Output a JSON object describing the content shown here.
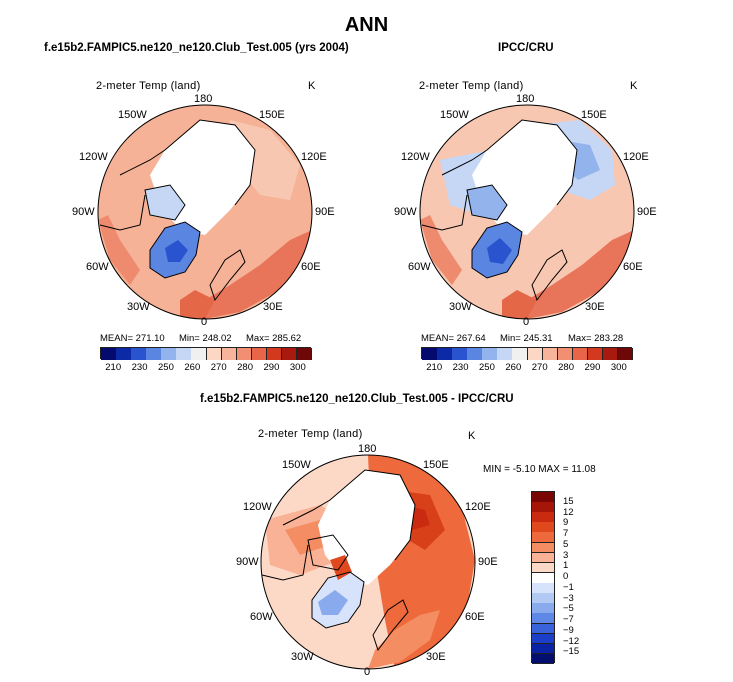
{
  "figure": {
    "title": "ANN",
    "variable": "2-meter Temp (land)",
    "units": "K"
  },
  "panels": [
    {
      "id": "model",
      "title": "f.e15b2.FAMPIC5.ne120_ne120.Club_Test.005 (yrs 2004)",
      "stats": {
        "mean": "271.10",
        "min": "248.02",
        "max": "285.62"
      },
      "stats_text": {
        "mean": "MEAN= 271.10",
        "min": "Min= 248.02",
        "max": "Max= 285.62"
      }
    },
    {
      "id": "obs",
      "title": "IPCC/CRU",
      "stats": {
        "mean": "267.64",
        "min": "245.31",
        "max": "283.28"
      },
      "stats_text": {
        "mean": "MEAN= 267.64",
        "min": "Min= 245.31",
        "max": "Max= 283.28"
      }
    },
    {
      "id": "diff",
      "title": "f.e15b2.FAMPIC5.ne120_ne120.Club_Test.005 - IPCC/CRU",
      "stats_text": {
        "line": "MIN =   -5.10 MAX =   11.08"
      }
    }
  ],
  "longitude_labels": {
    "top": "180",
    "tl": "150W",
    "tr": "150E",
    "ul": "120W",
    "ur": "120E",
    "l": "90W",
    "r": "90E",
    "ll": "60W",
    "lr": "60E",
    "bl": "30W",
    "br": "30E",
    "bottom": "0"
  },
  "colorbars": {
    "absolute": {
      "labels": [
        "210",
        "230",
        "250",
        "260",
        "270",
        "280",
        "290",
        "300"
      ],
      "colors": [
        "#050a6e",
        "#0d2aa6",
        "#2a54cf",
        "#5a85e0",
        "#93b3ec",
        "#c5d7f4",
        "#f0f0f0",
        "#fbd7c4",
        "#f8b49a",
        "#f28f72",
        "#e8654a",
        "#d2391e",
        "#a81a0e",
        "#6e0707"
      ]
    },
    "difference": {
      "labels": [
        "15",
        "12",
        "9",
        "7",
        "5",
        "3",
        "1",
        "0",
        "−1",
        "−3",
        "−5",
        "−7",
        "−9",
        "−12",
        "−15"
      ],
      "colors": [
        "#7a0505",
        "#a51508",
        "#c92a10",
        "#e0481e",
        "#ee6a3c",
        "#f58d62",
        "#f9b295",
        "#fcd8c7",
        "#ffffff",
        "#d6e3fa",
        "#b2c9f4",
        "#8aaaee",
        "#5f87e6",
        "#3a62da",
        "#1b3fc8",
        "#0a22a4",
        "#030e6e"
      ]
    }
  },
  "chart_data": [
    {
      "type": "heatmap",
      "projection": "north polar stereographic",
      "title": "f.e15b2.FAMPIC5.ne120_ne120.Club_Test.005 (yrs 2004)",
      "variable": "2-meter Temp (land)",
      "units": "K",
      "mean": 271.1,
      "min": 248.02,
      "max": 285.62,
      "levels": [
        210,
        230,
        250,
        260,
        270,
        280,
        290,
        300
      ]
    },
    {
      "type": "heatmap",
      "projection": "north polar stereographic",
      "title": "IPCC/CRU",
      "variable": "2-meter Temp (land)",
      "units": "K",
      "mean": 267.64,
      "min": 245.31,
      "max": 283.28,
      "levels": [
        210,
        230,
        250,
        260,
        270,
        280,
        290,
        300
      ]
    },
    {
      "type": "heatmap",
      "projection": "north polar stereographic",
      "title": "f.e15b2.FAMPIC5.ne120_ne120.Club_Test.005 - IPCC/CRU",
      "variable": "2-meter Temp (land)",
      "units": "K",
      "min": -5.1,
      "max": 11.08,
      "levels": [
        -15,
        -12,
        -9,
        -7,
        -5,
        -3,
        -1,
        0,
        1,
        3,
        5,
        7,
        9,
        12,
        15
      ]
    }
  ]
}
